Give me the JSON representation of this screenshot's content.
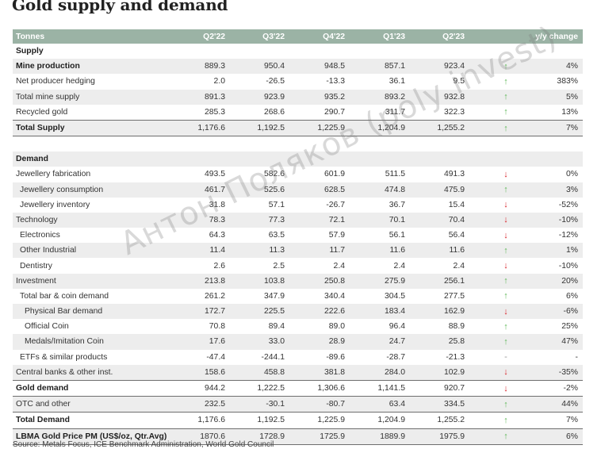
{
  "title": "Gold supply and demand",
  "header": {
    "label": "Tonnes",
    "columns": [
      "Q2'22",
      "Q3'22",
      "Q4'22",
      "Q1'23",
      "Q2'23"
    ],
    "change": "y/y change"
  },
  "supply": {
    "section": "Supply",
    "rows": [
      {
        "label": "Mine production",
        "values": [
          "889.3",
          "950.4",
          "948.5",
          "857.1",
          "923.4"
        ],
        "arrow": "↑",
        "change": "4%"
      },
      {
        "label": "Net producer hedging",
        "values": [
          "2.0",
          "-26.5",
          "-13.3",
          "36.1",
          "9.5"
        ],
        "arrow": "↑",
        "change": "383%"
      },
      {
        "label": "Total mine supply",
        "values": [
          "891.3",
          "923.9",
          "935.2",
          "893.2",
          "932.8"
        ],
        "arrow": "↑",
        "change": "5%"
      },
      {
        "label": "Recycled gold",
        "values": [
          "285.3",
          "268.6",
          "290.7",
          "311.7",
          "322.3"
        ],
        "arrow": "↑",
        "change": "13%"
      },
      {
        "label": "Total Supply",
        "values": [
          "1,176.6",
          "1,192.5",
          "1,225.9",
          "1,204.9",
          "1,255.2"
        ],
        "arrow": "↑",
        "change": "7%"
      }
    ]
  },
  "demand": {
    "section": "Demand",
    "rows": [
      {
        "label": "Jewellery fabrication",
        "values": [
          "493.5",
          "582.6",
          "601.9",
          "511.5",
          "491.3"
        ],
        "arrow": "↓",
        "change": "0%"
      },
      {
        "label": "Jewellery consumption",
        "values": [
          "461.7",
          "525.6",
          "628.5",
          "474.8",
          "475.9"
        ],
        "arrow": "↑",
        "change": "3%"
      },
      {
        "label": "Jewellery inventory",
        "values": [
          "31.8",
          "57.1",
          "-26.7",
          "36.7",
          "15.4"
        ],
        "arrow": "↓",
        "change": "-52%"
      },
      {
        "label": "Technology",
        "values": [
          "78.3",
          "77.3",
          "72.1",
          "70.1",
          "70.4"
        ],
        "arrow": "↓",
        "change": "-10%"
      },
      {
        "label": "Electronics",
        "values": [
          "64.3",
          "63.5",
          "57.9",
          "56.1",
          "56.4"
        ],
        "arrow": "↓",
        "change": "-12%"
      },
      {
        "label": "Other Industrial",
        "values": [
          "11.4",
          "11.3",
          "11.7",
          "11.6",
          "11.6"
        ],
        "arrow": "↑",
        "change": "1%"
      },
      {
        "label": "Dentistry",
        "values": [
          "2.6",
          "2.5",
          "2.4",
          "2.4",
          "2.4"
        ],
        "arrow": "↓",
        "change": "-10%"
      },
      {
        "label": "Investment",
        "values": [
          "213.8",
          "103.8",
          "250.8",
          "275.9",
          "256.1"
        ],
        "arrow": "↑",
        "change": "20%"
      },
      {
        "label": "Total bar & coin demand",
        "values": [
          "261.2",
          "347.9",
          "340.4",
          "304.5",
          "277.5"
        ],
        "arrow": "↑",
        "change": "6%"
      },
      {
        "label": "Physical Bar demand",
        "values": [
          "172.7",
          "225.5",
          "222.6",
          "183.4",
          "162.9"
        ],
        "arrow": "↓",
        "change": "-6%"
      },
      {
        "label": "Official Coin",
        "values": [
          "70.8",
          "89.4",
          "89.0",
          "96.4",
          "88.9"
        ],
        "arrow": "↑",
        "change": "25%"
      },
      {
        "label": "Medals/Imitation Coin",
        "values": [
          "17.6",
          "33.0",
          "28.9",
          "24.7",
          "25.8"
        ],
        "arrow": "↑",
        "change": "47%"
      },
      {
        "label": "ETFs & similar products",
        "values": [
          "-47.4",
          "-244.1",
          "-89.6",
          "-28.7",
          "-21.3"
        ],
        "arrow": "-",
        "change": "-"
      },
      {
        "label": "Central banks & other inst.",
        "values": [
          "158.6",
          "458.8",
          "381.8",
          "284.0",
          "102.9"
        ],
        "arrow": "↓",
        "change": "-35%"
      },
      {
        "label": "Gold demand",
        "values": [
          "944.2",
          "1,222.5",
          "1,306.6",
          "1,141.5",
          "920.7"
        ],
        "arrow": "↓",
        "change": "-2%"
      },
      {
        "label": "OTC and other",
        "values": [
          "232.5",
          "-30.1",
          "-80.7",
          "63.4",
          "334.5"
        ],
        "arrow": "↑",
        "change": "44%"
      },
      {
        "label": "Total Demand",
        "values": [
          "1,176.6",
          "1,192.5",
          "1,225.9",
          "1,204.9",
          "1,255.2"
        ],
        "arrow": "↑",
        "change": "7%"
      },
      {
        "label": "LBMA Gold Price PM (US$/oz, Qtr.Avg)",
        "values": [
          "1870.6",
          "1728.9",
          "1725.9",
          "1889.9",
          "1975.9"
        ],
        "arrow": "↑",
        "change": "6%"
      }
    ]
  },
  "source": "Source: Metals Focus, ICE Benchmark Administration, World Gold Council",
  "watermark": "Антон Поляков (poly invest)",
  "colors": {
    "header_bg": "#9bb3a5",
    "stripe": "#ededed",
    "up_arrow": "#5fb85a",
    "down_arrow": "#d8232a"
  }
}
